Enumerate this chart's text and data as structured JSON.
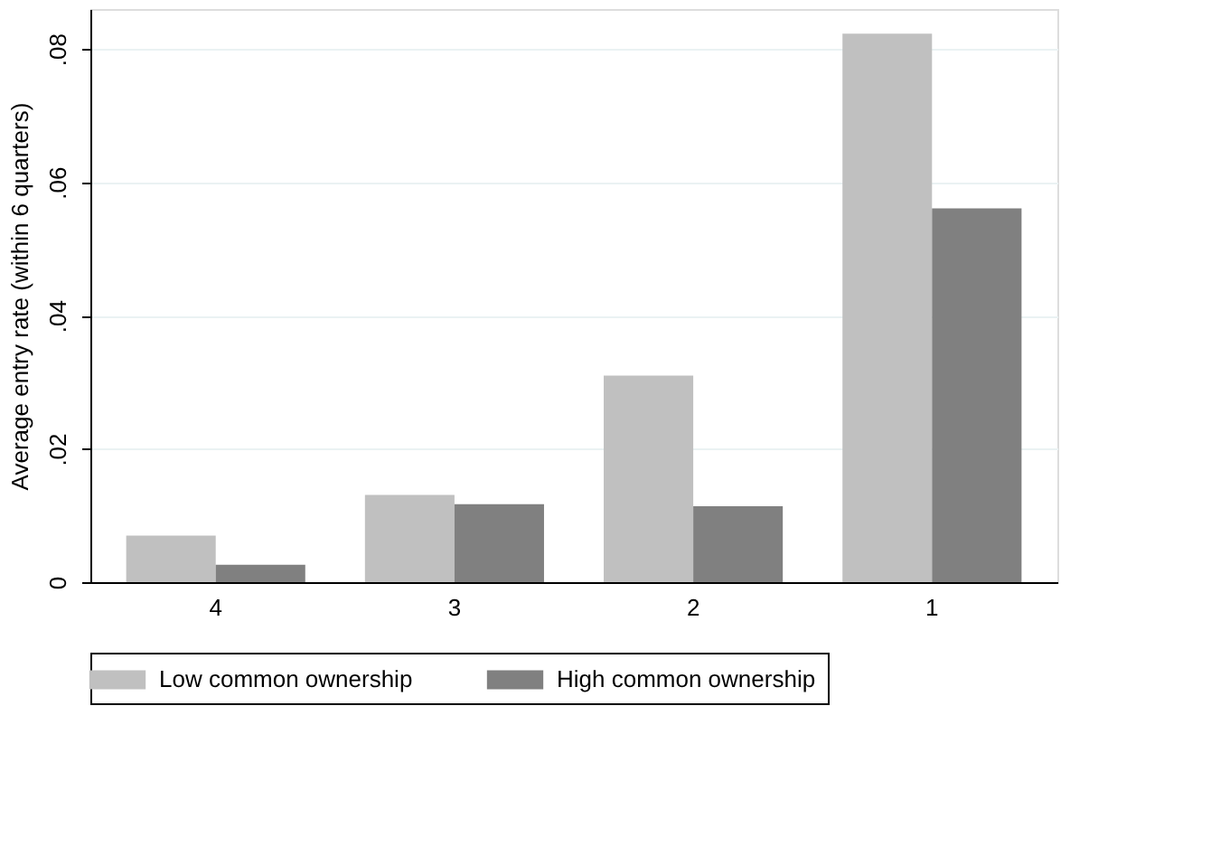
{
  "chart_data": {
    "type": "bar",
    "ylabel": "Average entry rate (within 6 quarters)",
    "categories": [
      "4",
      "3",
      "2",
      "1"
    ],
    "series": [
      {
        "name": "Low common ownership",
        "color": "#c0c0c0",
        "values": [
          0.007,
          0.0131,
          0.031,
          0.0823
        ]
      },
      {
        "name": "High common ownership",
        "color": "#808080",
        "values": [
          0.0026,
          0.0117,
          0.0114,
          0.0561
        ]
      }
    ],
    "ylim": [
      0,
      0.086
    ],
    "yticks": [
      {
        "value": 0,
        "label": "0"
      },
      {
        "value": 0.02,
        "label": ".02"
      },
      {
        "value": 0.04,
        "label": ".04"
      },
      {
        "value": 0.06,
        "label": ".06"
      },
      {
        "value": 0.08,
        "label": ".08"
      }
    ],
    "grid": "y",
    "legend": "bottom"
  }
}
